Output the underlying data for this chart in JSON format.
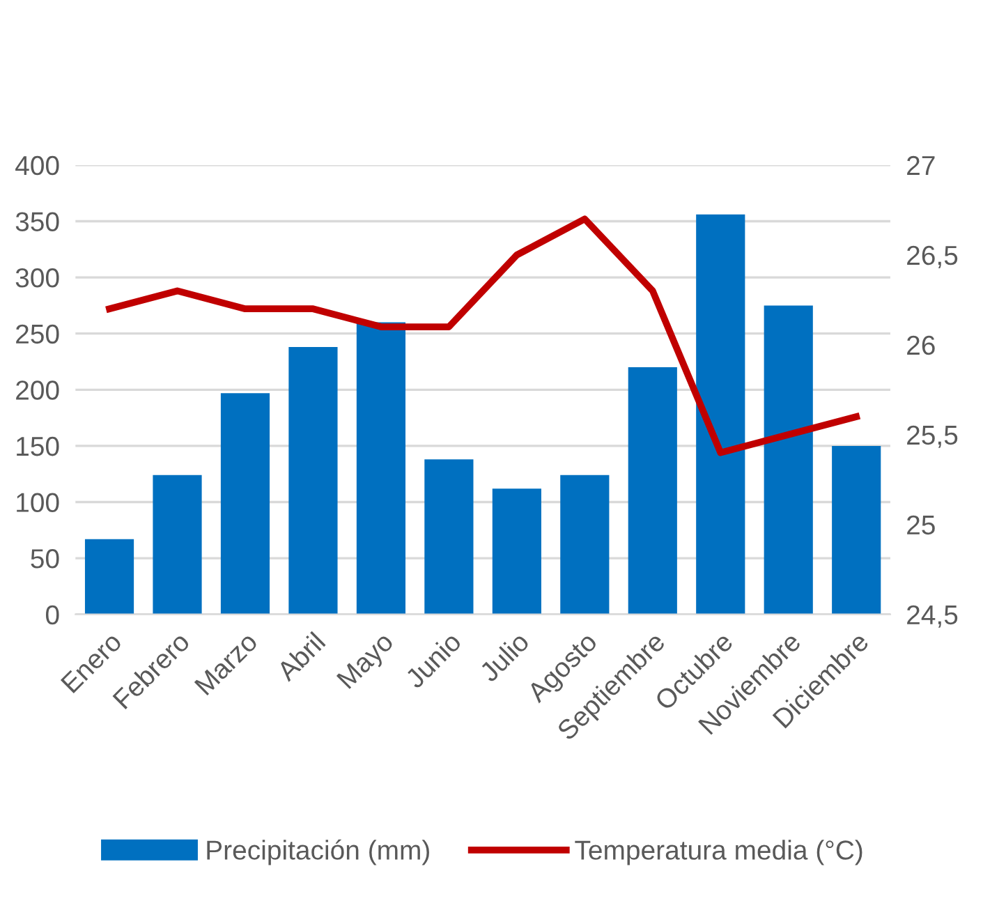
{
  "chart_data": {
    "type": "bar",
    "categories": [
      "Enero",
      "Febrero",
      "Marzo",
      "Abril",
      "Mayo",
      "Junio",
      "Julio",
      "Agosto",
      "Septiembre",
      "Octubre",
      "Noviembre",
      "Diciembre"
    ],
    "series": [
      {
        "name": "Precipitación (mm)",
        "color": "#0070c0",
        "values": [
          67,
          124,
          197,
          238,
          260,
          138,
          112,
          124,
          220,
          356,
          275,
          150
        ]
      },
      {
        "name": "Temperatura media (°C)",
        "type": "line",
        "axis": "y2",
        "color": "#c00000",
        "values": [
          26.2,
          26.3,
          26.2,
          26.2,
          26.1,
          26.1,
          26.5,
          26.7,
          26.3,
          25.4,
          25.5,
          25.6
        ]
      }
    ],
    "ylim": [
      0,
      400
    ],
    "yticks": [
      0,
      50,
      100,
      150,
      200,
      250,
      300,
      350,
      400
    ],
    "y2lim": [
      24.5,
      27
    ],
    "y2ticks": [
      {
        "value": 24.5,
        "label": "24,5"
      },
      25,
      {
        "value": 25.5,
        "label": "25,5"
      },
      26,
      {
        "value": 26.5,
        "label": "26,5"
      },
      27
    ],
    "grid": "y",
    "legend": "bottom",
    "marker": "none",
    "line_style": "solid"
  }
}
